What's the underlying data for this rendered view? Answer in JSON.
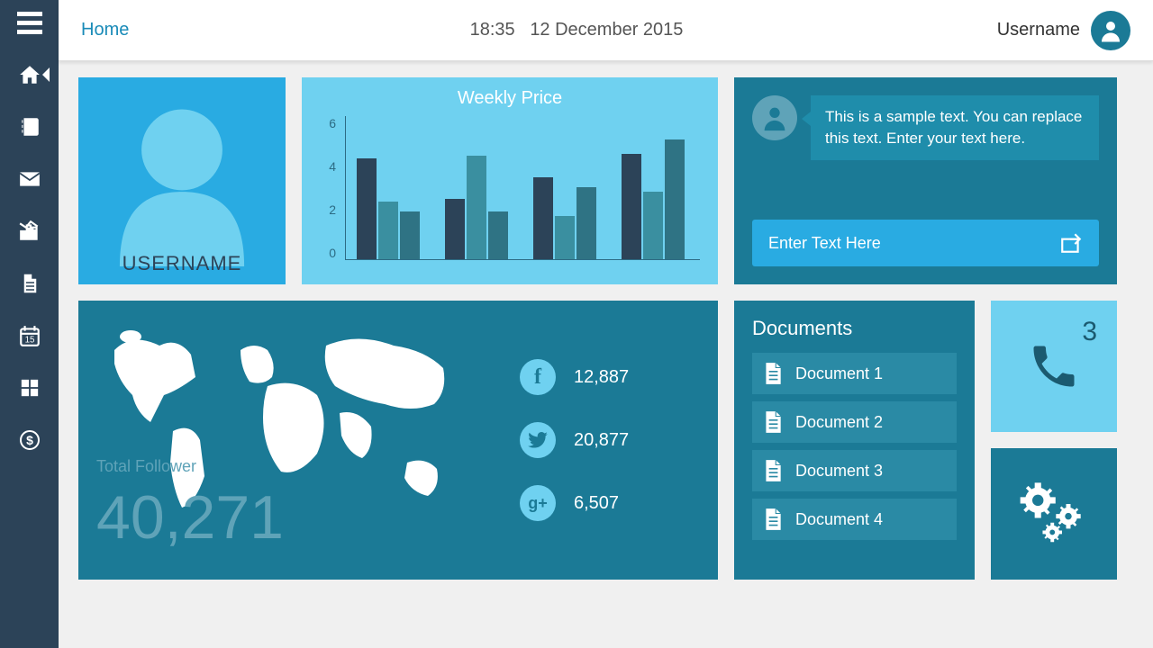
{
  "topbar": {
    "home_label": "Home",
    "time": "18:35",
    "date": "12 December 2015",
    "username": "Username"
  },
  "colors": {
    "sidebar": "#2c4358",
    "teal_dark": "#1b7a96",
    "teal_mid": "#29abe2",
    "teal_light": "#6fd1f0",
    "teal_panel": "#2a8aa5",
    "bubble": "#1f8dab"
  },
  "user_card": {
    "name": "USERNAME"
  },
  "chart": {
    "title": "Weekly Price",
    "type": "bar",
    "y_ticks": [
      "6",
      "4",
      "2",
      "0"
    ],
    "ylim": [
      0,
      6
    ],
    "groups": [
      [
        4.2,
        2.4,
        2.0
      ],
      [
        2.5,
        4.3,
        2.0
      ],
      [
        3.4,
        1.8,
        3.0
      ],
      [
        4.4,
        2.8,
        5.0
      ]
    ],
    "bar_colors": [
      "#2c4358",
      "#3a8fa0",
      "#2f7384"
    ],
    "axis_color": "#2c6b84"
  },
  "followers": {
    "total_label": "Total Follower",
    "total_value": "40,271",
    "social": [
      {
        "name": "facebook",
        "count": "12,887",
        "glyph": "f"
      },
      {
        "name": "twitter",
        "count": "20,877",
        "glyph": "t"
      },
      {
        "name": "gplus",
        "count": "6,507",
        "glyph": "g+"
      }
    ]
  },
  "message": {
    "text": "This is a sample text. You can replace this text. Enter your text here.",
    "placeholder": "Enter Text Here"
  },
  "documents": {
    "title": "Documents",
    "items": [
      "Document 1",
      "Document 2",
      "Document 3",
      "Document 4"
    ]
  },
  "phone": {
    "badge": "3"
  }
}
